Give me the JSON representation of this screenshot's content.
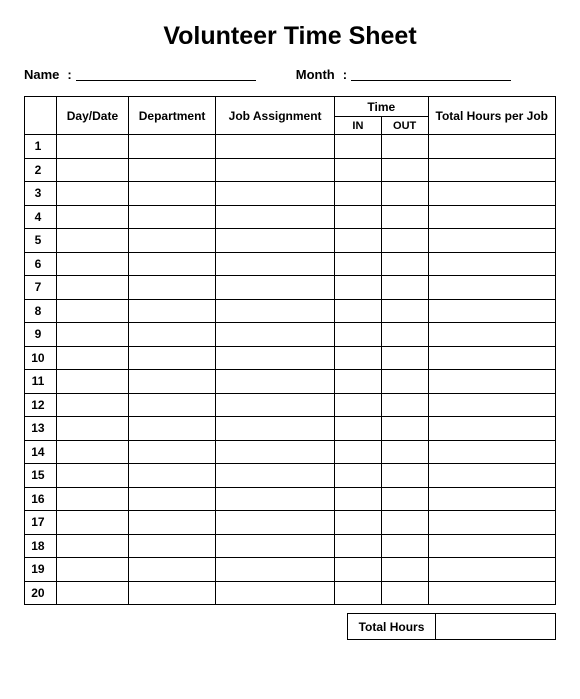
{
  "title": "Volunteer Time Sheet",
  "fields": {
    "name_label": "Name",
    "name_value": "",
    "month_label": "Month",
    "month_value": ""
  },
  "table": {
    "headers": {
      "day_date": "Day/Date",
      "department": "Department",
      "job_assignment": "Job Assignment",
      "time": "Time",
      "time_in": "IN",
      "time_out": "OUT",
      "total_hours": "Total Hours per Job"
    },
    "row_count": 20,
    "rows": [
      {
        "num": "1",
        "day_date": "",
        "department": "",
        "job": "",
        "in": "",
        "out": "",
        "total": ""
      },
      {
        "num": "2",
        "day_date": "",
        "department": "",
        "job": "",
        "in": "",
        "out": "",
        "total": ""
      },
      {
        "num": "3",
        "day_date": "",
        "department": "",
        "job": "",
        "in": "",
        "out": "",
        "total": ""
      },
      {
        "num": "4",
        "day_date": "",
        "department": "",
        "job": "",
        "in": "",
        "out": "",
        "total": ""
      },
      {
        "num": "5",
        "day_date": "",
        "department": "",
        "job": "",
        "in": "",
        "out": "",
        "total": ""
      },
      {
        "num": "6",
        "day_date": "",
        "department": "",
        "job": "",
        "in": "",
        "out": "",
        "total": ""
      },
      {
        "num": "7",
        "day_date": "",
        "department": "",
        "job": "",
        "in": "",
        "out": "",
        "total": ""
      },
      {
        "num": "8",
        "day_date": "",
        "department": "",
        "job": "",
        "in": "",
        "out": "",
        "total": ""
      },
      {
        "num": "9",
        "day_date": "",
        "department": "",
        "job": "",
        "in": "",
        "out": "",
        "total": ""
      },
      {
        "num": "10",
        "day_date": "",
        "department": "",
        "job": "",
        "in": "",
        "out": "",
        "total": ""
      },
      {
        "num": "11",
        "day_date": "",
        "department": "",
        "job": "",
        "in": "",
        "out": "",
        "total": ""
      },
      {
        "num": "12",
        "day_date": "",
        "department": "",
        "job": "",
        "in": "",
        "out": "",
        "total": ""
      },
      {
        "num": "13",
        "day_date": "",
        "department": "",
        "job": "",
        "in": "",
        "out": "",
        "total": ""
      },
      {
        "num": "14",
        "day_date": "",
        "department": "",
        "job": "",
        "in": "",
        "out": "",
        "total": ""
      },
      {
        "num": "15",
        "day_date": "",
        "department": "",
        "job": "",
        "in": "",
        "out": "",
        "total": ""
      },
      {
        "num": "16",
        "day_date": "",
        "department": "",
        "job": "",
        "in": "",
        "out": "",
        "total": ""
      },
      {
        "num": "17",
        "day_date": "",
        "department": "",
        "job": "",
        "in": "",
        "out": "",
        "total": ""
      },
      {
        "num": "18",
        "day_date": "",
        "department": "",
        "job": "",
        "in": "",
        "out": "",
        "total": ""
      },
      {
        "num": "19",
        "day_date": "",
        "department": "",
        "job": "",
        "in": "",
        "out": "",
        "total": ""
      },
      {
        "num": "20",
        "day_date": "",
        "department": "",
        "job": "",
        "in": "",
        "out": "",
        "total": ""
      }
    ]
  },
  "footer": {
    "total_hours_label": "Total Hours",
    "total_hours_value": ""
  },
  "style": {
    "background_color": "#ffffff",
    "border_color": "#000000",
    "title_fontsize": 25,
    "header_fontsize": 12,
    "body_fontsize": 12
  }
}
